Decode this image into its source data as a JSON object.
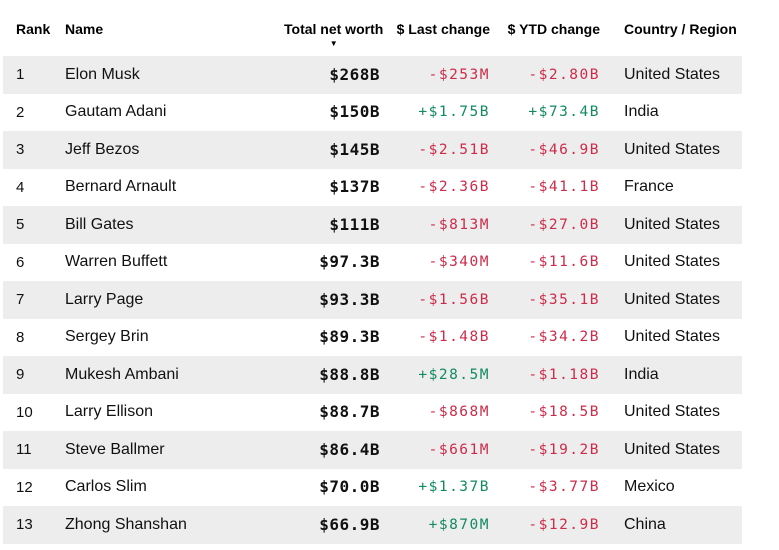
{
  "table": {
    "columns": [
      {
        "key": "rank",
        "label": "Rank",
        "align": "left"
      },
      {
        "key": "name",
        "label": "Name",
        "align": "left"
      },
      {
        "key": "net_worth",
        "label": "Total net worth",
        "align": "right",
        "sorted": "desc"
      },
      {
        "key": "last_change",
        "label": "$ Last change",
        "align": "right"
      },
      {
        "key": "ytd_change",
        "label": "$ YTD change",
        "align": "right"
      },
      {
        "key": "country",
        "label": "Country / Region",
        "align": "left"
      }
    ],
    "sort_icon": "▼",
    "rows": [
      {
        "rank": "1",
        "name": "Elon Musk",
        "net_worth": "$268B",
        "last_change": "-$253M",
        "ytd_change": "-$2.80B",
        "country": "United States"
      },
      {
        "rank": "2",
        "name": "Gautam Adani",
        "net_worth": "$150B",
        "last_change": "+$1.75B",
        "ytd_change": "+$73.4B",
        "country": "India"
      },
      {
        "rank": "3",
        "name": "Jeff Bezos",
        "net_worth": "$145B",
        "last_change": "-$2.51B",
        "ytd_change": "-$46.9B",
        "country": "United States"
      },
      {
        "rank": "4",
        "name": "Bernard Arnault",
        "net_worth": "$137B",
        "last_change": "-$2.36B",
        "ytd_change": "-$41.1B",
        "country": "France"
      },
      {
        "rank": "5",
        "name": "Bill Gates",
        "net_worth": "$111B",
        "last_change": "-$813M",
        "ytd_change": "-$27.0B",
        "country": "United States"
      },
      {
        "rank": "6",
        "name": "Warren Buffett",
        "net_worth": "$97.3B",
        "last_change": "-$340M",
        "ytd_change": "-$11.6B",
        "country": "United States"
      },
      {
        "rank": "7",
        "name": "Larry Page",
        "net_worth": "$93.3B",
        "last_change": "-$1.56B",
        "ytd_change": "-$35.1B",
        "country": "United States"
      },
      {
        "rank": "8",
        "name": "Sergey Brin",
        "net_worth": "$89.3B",
        "last_change": "-$1.48B",
        "ytd_change": "-$34.2B",
        "country": "United States"
      },
      {
        "rank": "9",
        "name": "Mukesh Ambani",
        "net_worth": "$88.8B",
        "last_change": "+$28.5M",
        "ytd_change": "-$1.18B",
        "country": "India"
      },
      {
        "rank": "10",
        "name": "Larry Ellison",
        "net_worth": "$88.7B",
        "last_change": "-$868M",
        "ytd_change": "-$18.5B",
        "country": "United States"
      },
      {
        "rank": "11",
        "name": "Steve Ballmer",
        "net_worth": "$86.4B",
        "last_change": "-$661M",
        "ytd_change": "-$19.2B",
        "country": "United States"
      },
      {
        "rank": "12",
        "name": "Carlos Slim",
        "net_worth": "$70.0B",
        "last_change": "+$1.37B",
        "ytd_change": "-$3.77B",
        "country": "Mexico"
      },
      {
        "rank": "13",
        "name": "Zhong Shanshan",
        "net_worth": "$66.9B",
        "last_change": "+$870M",
        "ytd_change": "-$12.9B",
        "country": "China"
      }
    ]
  },
  "colors": {
    "positive": "#128a63",
    "negative": "#ce2b4a",
    "stripe": "#ededed",
    "text": "#111111"
  }
}
